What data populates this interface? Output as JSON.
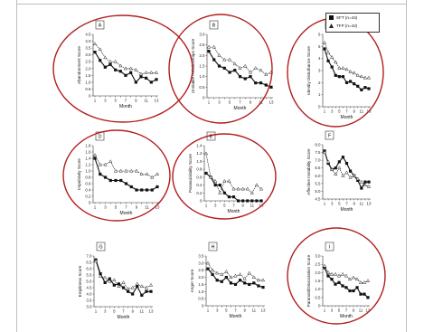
{
  "figure": {
    "legend": [
      {
        "label": "SFT (n=44)",
        "marker": "square",
        "color": "#111111"
      },
      {
        "label": "TFP (n=42)",
        "marker": "triangle",
        "color": "#222222"
      }
    ],
    "circle_color": "#b11d1d",
    "line_color": "#111111"
  },
  "chart_data": [
    {
      "type": "line",
      "panel_letter": "A",
      "ylabel": "Abandonment Score",
      "xlabel": "Month",
      "ylim": [
        0,
        4.5
      ],
      "yticks": [
        "0",
        "0.5",
        "1.0",
        "1.5",
        "2.0",
        "2.5",
        "3.0",
        "3.5",
        "4.0",
        "4.5"
      ],
      "x": [
        1,
        2,
        3,
        4,
        5,
        6,
        7,
        8,
        9,
        10,
        11,
        12,
        13
      ],
      "xticks": [
        "1",
        "3",
        "5",
        "7",
        "9",
        "11",
        "13"
      ],
      "series": [
        {
          "name": "SFT (n=44)",
          "marker": "square",
          "values": [
            3.2,
            2.6,
            2.1,
            2.3,
            1.9,
            1.8,
            1.5,
            1.7,
            1.0,
            1.4,
            1.3,
            1.0,
            1.2
          ]
        },
        {
          "name": "TFP (n=42)",
          "marker": "triangle",
          "values": [
            3.8,
            3.4,
            2.8,
            2.5,
            2.5,
            2.2,
            2.0,
            2.0,
            1.9,
            1.6,
            1.7,
            1.7,
            1.7
          ]
        }
      ],
      "circled": true
    },
    {
      "type": "line",
      "panel_letter": "B",
      "ylabel": "Unstable Relationships Score",
      "xlabel": "Month",
      "ylim": [
        0,
        3.0
      ],
      "yticks": [
        "0",
        "0.5",
        "1.0",
        "1.5",
        "2.0",
        "2.5",
        "3.0"
      ],
      "x": [
        1,
        2,
        3,
        4,
        5,
        6,
        7,
        8,
        9,
        10,
        11,
        12,
        13
      ],
      "xticks": [
        "1",
        "3",
        "5",
        "7",
        "9",
        "11",
        "13"
      ],
      "series": [
        {
          "name": "SFT (n=44)",
          "marker": "square",
          "values": [
            2.2,
            1.8,
            1.5,
            1.4,
            1.2,
            1.3,
            1.0,
            0.9,
            1.0,
            0.7,
            0.7,
            0.6,
            0.5
          ]
        },
        {
          "name": "TFP (n=42)",
          "marker": "triangle",
          "values": [
            2.4,
            2.4,
            2.0,
            1.8,
            1.8,
            1.6,
            1.4,
            1.5,
            1.2,
            1.4,
            1.3,
            1.1,
            1.2
          ]
        }
      ],
      "circled": true
    },
    {
      "type": "line",
      "panel_letter": "C",
      "ylabel": "Identity Disturbance Score",
      "xlabel": "Month",
      "ylim": [
        0,
        6
      ],
      "yticks": [
        "0",
        "1",
        "2",
        "3",
        "4",
        "5",
        "6"
      ],
      "x": [
        1,
        2,
        3,
        4,
        5,
        6,
        7,
        8,
        9,
        10,
        11,
        12,
        13
      ],
      "xticks": [
        "1",
        "3",
        "5",
        "7",
        "9",
        "11",
        "13"
      ],
      "series": [
        {
          "name": "SFT (n=44)",
          "marker": "square",
          "values": [
            4.8,
            3.8,
            3.3,
            2.6,
            2.5,
            2.5,
            2.0,
            2.1,
            1.9,
            1.7,
            1.4,
            1.6,
            1.5
          ]
        },
        {
          "name": "TFP (n=42)",
          "marker": "triangle",
          "values": [
            5.3,
            4.5,
            4.1,
            3.7,
            3.2,
            3.2,
            3.1,
            2.9,
            2.8,
            2.6,
            2.5,
            2.4,
            2.4
          ]
        }
      ],
      "circled": true
    },
    {
      "type": "line",
      "panel_letter": "D",
      "ylabel": "Impulsivity Score",
      "xlabel": "Month",
      "ylim": [
        0,
        1.8
      ],
      "yticks": [
        "0",
        "0.2",
        "0.4",
        "0.6",
        "0.8",
        "1.0",
        "1.2",
        "1.4",
        "1.6",
        "1.8"
      ],
      "x": [
        1,
        2,
        3,
        4,
        5,
        6,
        7,
        8,
        9,
        10,
        11,
        12,
        13
      ],
      "xticks": [
        "1",
        "3",
        "5",
        "7",
        "9",
        "11",
        "13"
      ],
      "series": [
        {
          "name": "SFT (n=44)",
          "marker": "square",
          "values": [
            1.4,
            0.9,
            0.8,
            0.7,
            0.7,
            0.7,
            0.6,
            0.5,
            0.4,
            0.4,
            0.4,
            0.4,
            0.5
          ]
        },
        {
          "name": "TFP (n=42)",
          "marker": "triangle",
          "values": [
            1.5,
            1.2,
            1.2,
            1.3,
            1.0,
            1.0,
            1.0,
            1.0,
            1.0,
            0.9,
            0.9,
            0.8,
            0.9
          ]
        }
      ],
      "circled": true
    },
    {
      "type": "line",
      "panel_letter": "E",
      "ylabel": "Parasuicidality Score",
      "xlabel": "Month",
      "ylim": [
        0,
        1.4
      ],
      "yticks": [
        "0",
        "0.2",
        "0.4",
        "0.6",
        "0.8",
        "1.0",
        "1.2",
        "1.4"
      ],
      "x": [
        1,
        2,
        3,
        4,
        5,
        6,
        7,
        8,
        9,
        10,
        11,
        12,
        13
      ],
      "xticks": [
        "1",
        "3",
        "5",
        "7",
        "9",
        "11",
        "13"
      ],
      "series": [
        {
          "name": "SFT (n=44)",
          "marker": "square",
          "values": [
            0.7,
            0.6,
            0.4,
            0.4,
            0.2,
            0.1,
            0.1,
            0.0,
            0.0,
            0.0,
            0.0,
            0.0,
            0.0
          ]
        },
        {
          "name": "TFP (n=42)",
          "marker": "triangle",
          "values": [
            1.2,
            0.6,
            0.5,
            0.2,
            0.5,
            0.5,
            0.3,
            0.3,
            0.3,
            0.3,
            0.2,
            0.4,
            0.3
          ]
        }
      ],
      "circled": true
    },
    {
      "type": "line",
      "panel_letter": "F",
      "ylabel": "Affective Instability Score",
      "xlabel": "Month",
      "ylim": [
        4.5,
        8.0
      ],
      "yticks": [
        "4.5",
        "5.0",
        "5.5",
        "6.0",
        "6.5",
        "7.0",
        "7.5",
        "8.0"
      ],
      "x": [
        1,
        2,
        3,
        4,
        5,
        6,
        7,
        8,
        9,
        10,
        11,
        12,
        13
      ],
      "xticks": [
        "1",
        "3",
        "5",
        "7",
        "9",
        "11",
        "13"
      ],
      "series": [
        {
          "name": "SFT (n=44)",
          "marker": "square",
          "values": [
            7.6,
            6.8,
            6.4,
            6.5,
            6.9,
            7.2,
            6.8,
            6.3,
            6.0,
            5.7,
            5.2,
            5.6,
            5.6
          ]
        },
        {
          "name": "TFP (n=42)",
          "marker": "triangle",
          "values": [
            7.5,
            6.9,
            6.4,
            6.1,
            6.5,
            6.0,
            6.2,
            5.9,
            6.0,
            5.8,
            5.6,
            5.4,
            5.3
          ]
        }
      ],
      "circled": false
    },
    {
      "type": "line",
      "panel_letter": "G",
      "ylabel": "Emptiness Score",
      "xlabel": "Month",
      "ylim": [
        3.0,
        7.0
      ],
      "yticks": [
        "3.0",
        "3.5",
        "4.0",
        "4.5",
        "5.0",
        "5.5",
        "6.0",
        "6.5",
        "7.0"
      ],
      "x": [
        1,
        2,
        3,
        4,
        5,
        6,
        7,
        8,
        9,
        10,
        11,
        12,
        13
      ],
      "xticks": [
        "1",
        "3",
        "5",
        "7",
        "9",
        "11",
        "13"
      ],
      "series": [
        {
          "name": "SFT (n=44)",
          "marker": "square",
          "values": [
            6.7,
            5.6,
            4.9,
            5.2,
            4.7,
            4.8,
            4.5,
            4.2,
            4.0,
            4.6,
            3.9,
            4.2,
            4.2
          ]
        },
        {
          "name": "TFP (n=42)",
          "marker": "triangle",
          "values": [
            6.6,
            5.4,
            5.3,
            5.0,
            5.1,
            4.6,
            4.9,
            4.4,
            4.5,
            4.8,
            4.6,
            4.5,
            4.7
          ]
        }
      ],
      "circled": false
    },
    {
      "type": "line",
      "panel_letter": "H",
      "ylabel": "Anger Score",
      "xlabel": "Month",
      "ylim": [
        0,
        3.5
      ],
      "yticks": [
        "0",
        "0.5",
        "1.0",
        "1.5",
        "2.0",
        "2.5",
        "3.0",
        "3.5"
      ],
      "x": [
        1,
        2,
        3,
        4,
        5,
        6,
        7,
        8,
        9,
        10,
        11,
        12,
        13
      ],
      "xticks": [
        "1",
        "3",
        "5",
        "7",
        "9",
        "11",
        "13"
      ],
      "series": [
        {
          "name": "SFT (n=44)",
          "marker": "square",
          "values": [
            2.6,
            2.2,
            1.8,
            1.7,
            2.0,
            1.6,
            1.5,
            1.8,
            1.6,
            1.5,
            1.6,
            1.4,
            1.3
          ]
        },
        {
          "name": "TFP (n=42)",
          "marker": "triangle",
          "values": [
            3.0,
            2.5,
            2.3,
            2.2,
            2.4,
            2.0,
            2.1,
            2.2,
            1.9,
            2.3,
            2.0,
            1.8,
            1.8
          ]
        }
      ],
      "circled": false
    },
    {
      "type": "line",
      "panel_letter": "I",
      "ylabel": "Paranoid/Dissociation Score",
      "xlabel": "Month",
      "ylim": [
        0,
        3.0
      ],
      "yticks": [
        "0",
        "0.5",
        "1.0",
        "1.5",
        "2.0",
        "2.5",
        "3.0"
      ],
      "x": [
        1,
        2,
        3,
        4,
        5,
        6,
        7,
        8,
        9,
        10,
        11,
        12,
        13
      ],
      "xticks": [
        "1",
        "3",
        "5",
        "7",
        "9",
        "11",
        "13"
      ],
      "series": [
        {
          "name": "SFT (n=44)",
          "marker": "square",
          "values": [
            2.3,
            1.8,
            1.6,
            1.3,
            1.4,
            1.2,
            1.1,
            0.9,
            0.9,
            1.1,
            0.7,
            0.7,
            0.5
          ]
        },
        {
          "name": "TFP (n=42)",
          "marker": "triangle",
          "values": [
            2.4,
            2.0,
            1.9,
            1.9,
            1.8,
            1.9,
            1.8,
            1.6,
            1.7,
            1.6,
            1.4,
            1.4,
            1.5
          ]
        }
      ],
      "circled": true
    }
  ]
}
